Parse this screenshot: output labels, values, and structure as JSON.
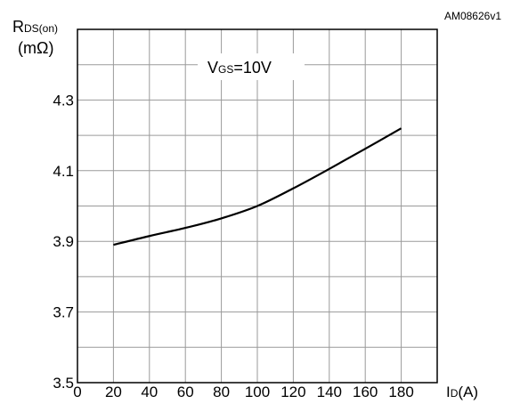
{
  "figure_id": "AM08626v1",
  "chart_data": {
    "type": "line",
    "annotation": "=10V",
    "annotation_v": "V",
    "annotation_sub": "GS",
    "y_label_main": "R",
    "y_label_sub": "DS(on)",
    "y_unit": "(mΩ)",
    "x_label_main": "I",
    "x_label_sub": "D",
    "x_unit": "(A)",
    "xlim": [
      0,
      200
    ],
    "ylim": [
      3.5,
      4.5
    ],
    "x_ticks": [
      0,
      20,
      40,
      60,
      80,
      100,
      120,
      140,
      160,
      180
    ],
    "y_ticks": [
      3.5,
      3.7,
      3.9,
      4.1,
      4.3
    ],
    "y_tick_labels": [
      "3.5",
      "3.7",
      "3.9",
      "4.1",
      "4.3"
    ],
    "grid": true,
    "series": [
      {
        "color": "#000000",
        "x": [
          20,
          40,
          60,
          80,
          100,
          120,
          140,
          160,
          180
        ],
        "y": [
          3.89,
          3.915,
          3.938,
          3.965,
          4.0,
          4.05,
          4.105,
          4.162,
          4.22
        ]
      }
    ]
  }
}
